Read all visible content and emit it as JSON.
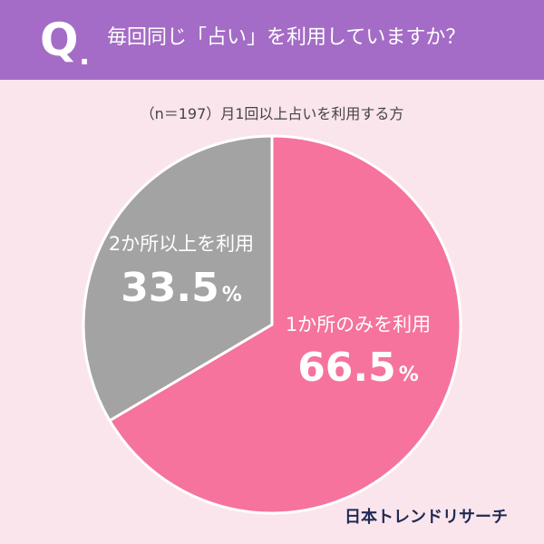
{
  "header": {
    "q_letter": "Q",
    "q_dot": ".",
    "question": "毎回同じ「占い」を利用していますか？"
  },
  "subtitle": "（n＝197）月1回以上占いを利用する方",
  "brand": "日本トレンドリサーチ",
  "colors": {
    "banner": "#a46cc6",
    "background": "#fbe5ec",
    "slice_once": "#f5739c",
    "slice_multiple": "#a3a3a3"
  },
  "chart_data": {
    "type": "pie",
    "n": 197,
    "slices": [
      {
        "label": "1か所のみを利用",
        "value": 66.5,
        "display": "66.5",
        "unit": "%",
        "color": "#f5739c"
      },
      {
        "label": "2か所以上を利用",
        "value": 33.5,
        "display": "33.5",
        "unit": "%",
        "color": "#a3a3a3"
      }
    ],
    "start": "12 o'clock",
    "direction": "clockwise"
  }
}
